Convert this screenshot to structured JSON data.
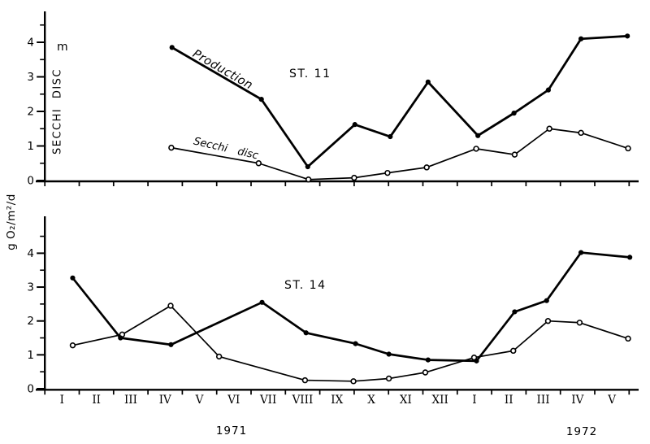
{
  "figure": {
    "background": "#ffffff",
    "ink_color": "#000000",
    "top_chart": {
      "station_label": "ST. 11",
      "unit_label": "m",
      "ylabel": "SECCHI DISC",
      "production_label": "Production",
      "secchi_label": "Secchi disc"
    },
    "bottom_chart": {
      "station_label": "ST. 14",
      "ylabel": "g O₂/m²/d"
    },
    "x_axis": {
      "months_1971": [
        "I",
        "II",
        "III",
        "IV",
        "V",
        "VI",
        "VII",
        "VIII",
        "IX",
        "X",
        "XI",
        "XII"
      ],
      "months_1972": [
        "I",
        "II",
        "III",
        "IV",
        "V"
      ],
      "year_left": "1971",
      "year_right": "1972"
    }
  },
  "chart_data": [
    {
      "type": "line",
      "title": "ST. 11",
      "ylabel": "SECCHI DISC (m) / Production",
      "ylim": [
        0,
        4.9
      ],
      "xlim": [
        0,
        17
      ],
      "yticks": [
        0,
        1,
        2,
        3,
        4
      ],
      "x_ticklabels": [
        "I",
        "II",
        "III",
        "IV",
        "V",
        "VI",
        "VII",
        "VIII",
        "IX",
        "X",
        "XI",
        "XII",
        "I",
        "II",
        "III",
        "IV",
        "V"
      ],
      "x_note": "x = fractional months from start of I 1971; I–XII 1971 span 0–12, I–V 1972 span 12–17",
      "grid": false,
      "legend_position": "inline-annotations",
      "series": [
        {
          "name": "Production",
          "marker": "filled-circle",
          "points": [
            [
              3.7,
              3.85
            ],
            [
              6.3,
              2.35
            ],
            [
              7.65,
              0.4
            ],
            [
              9.02,
              1.62
            ],
            [
              10.05,
              1.27
            ],
            [
              11.15,
              2.85
            ],
            [
              12.6,
              1.3
            ],
            [
              13.65,
              1.95
            ],
            [
              14.65,
              2.62
            ],
            [
              15.6,
              4.1
            ],
            [
              16.95,
              4.18
            ]
          ]
        },
        {
          "name": "Secchi disc",
          "marker": "open-circle",
          "points": [
            [
              3.68,
              0.95
            ],
            [
              6.22,
              0.5
            ],
            [
              7.67,
              0.03
            ],
            [
              9.0,
              0.08
            ],
            [
              9.97,
              0.22
            ],
            [
              11.11,
              0.38
            ],
            [
              12.55,
              0.92
            ],
            [
              13.67,
              0.75
            ],
            [
              14.68,
              1.5
            ],
            [
              15.6,
              1.38
            ],
            [
              16.97,
              0.93
            ]
          ]
        }
      ]
    },
    {
      "type": "line",
      "title": "ST. 14",
      "ylabel": "g O₂/m²/d",
      "ylim": [
        0,
        5.1
      ],
      "xlim": [
        0,
        17
      ],
      "yticks": [
        0,
        1,
        2,
        3,
        4
      ],
      "x_ticklabels": [
        "I",
        "II",
        "III",
        "IV",
        "V",
        "VI",
        "VII",
        "VIII",
        "IX",
        "X",
        "XI",
        "XII",
        "I",
        "II",
        "III",
        "IV",
        "V"
      ],
      "x_note": "x = fractional months from start of I 1971; I–XII 1971 span 0–12, I–V 1972 span 12–17",
      "grid": false,
      "legend_position": "none",
      "series": [
        {
          "name": "Production",
          "marker": "filled-circle",
          "points": [
            [
              0.81,
              3.27
            ],
            [
              2.2,
              1.5
            ],
            [
              3.67,
              1.3
            ],
            [
              6.32,
              2.55
            ],
            [
              7.6,
              1.65
            ],
            [
              9.04,
              1.33
            ],
            [
              10.01,
              1.02
            ],
            [
              11.15,
              0.85
            ],
            [
              12.56,
              0.82
            ],
            [
              13.67,
              2.27
            ],
            [
              14.6,
              2.6
            ],
            [
              15.6,
              4.02
            ],
            [
              17.02,
              3.88
            ]
          ]
        },
        {
          "name": "Secchi disc",
          "marker": "open-circle",
          "points": [
            [
              0.81,
              1.28
            ],
            [
              2.25,
              1.6
            ],
            [
              3.66,
              2.45
            ],
            [
              5.07,
              0.95
            ],
            [
              7.57,
              0.25
            ],
            [
              8.98,
              0.22
            ],
            [
              10.01,
              0.3
            ],
            [
              11.07,
              0.48
            ],
            [
              12.49,
              0.92
            ],
            [
              13.63,
              1.12
            ],
            [
              14.64,
              2.0
            ],
            [
              15.56,
              1.95
            ],
            [
              16.97,
              1.48
            ]
          ]
        }
      ]
    }
  ]
}
